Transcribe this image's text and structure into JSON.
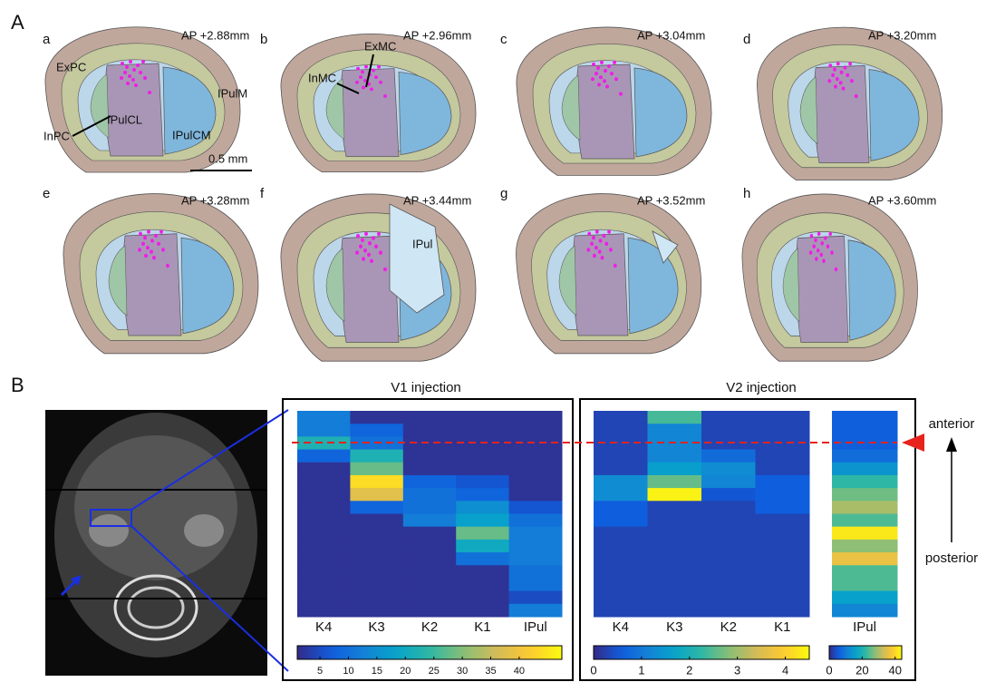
{
  "panel_a": {
    "label": "A",
    "sections": [
      {
        "letter": "a",
        "ap": "AP +2.88mm"
      },
      {
        "letter": "b",
        "ap": "AP +2.96mm"
      },
      {
        "letter": "c",
        "ap": "AP +3.04mm"
      },
      {
        "letter": "d",
        "ap": "AP +3.20mm"
      },
      {
        "letter": "e",
        "ap": "AP +3.28mm"
      },
      {
        "letter": "f",
        "ap": "AP +3.44mm"
      },
      {
        "letter": "g",
        "ap": "AP +3.52mm"
      },
      {
        "letter": "h",
        "ap": "AP +3.60mm"
      }
    ],
    "regions": [
      "ExPC",
      "InPC",
      "IPulCL",
      "IPulCM",
      "IPulM",
      "InMC",
      "ExMC",
      "IPul"
    ],
    "scale_bar": "0.5 mm"
  },
  "panel_b": {
    "label": "B",
    "anterior": "anterior",
    "posterior": "posterior"
  },
  "chart_data": [
    {
      "type": "heatmap",
      "title": "V1 injection",
      "colormap": "parula",
      "categories": [
        "K4",
        "K3",
        "K2",
        "K1",
        "IPul"
      ],
      "values": [
        [
          12,
          2,
          2,
          2,
          2
        ],
        [
          12,
          8,
          2,
          2,
          2
        ],
        [
          22,
          10,
          2,
          2,
          2
        ],
        [
          8,
          22,
          2,
          2,
          2
        ],
        [
          2,
          28,
          2,
          2,
          2
        ],
        [
          2,
          44,
          8,
          6,
          2
        ],
        [
          2,
          38,
          10,
          8,
          2
        ],
        [
          2,
          8,
          10,
          15,
          6
        ],
        [
          2,
          2,
          12,
          18,
          10
        ],
        [
          2,
          2,
          2,
          28,
          12
        ],
        [
          2,
          2,
          2,
          20,
          12
        ],
        [
          2,
          2,
          2,
          10,
          12
        ],
        [
          2,
          2,
          2,
          2,
          10
        ],
        [
          2,
          2,
          2,
          2,
          10
        ],
        [
          2,
          2,
          2,
          2,
          5
        ],
        [
          2,
          2,
          2,
          2,
          12
        ]
      ],
      "clim": [
        1,
        47.5
      ],
      "cticks": [
        5,
        10,
        15,
        20,
        25,
        30,
        35,
        40
      ]
    },
    {
      "type": "heatmap",
      "title": "V2 injection",
      "colormap": "parula",
      "categories": [
        "K4",
        "K3",
        "K2",
        "K1"
      ],
      "values": [
        [
          0.3,
          2.4,
          0.3,
          0.3
        ],
        [
          0.3,
          1.2,
          0.3,
          0.3
        ],
        [
          0.3,
          1.2,
          0.3,
          0.3
        ],
        [
          0.3,
          1.2,
          0.8,
          0.3
        ],
        [
          0.3,
          1.6,
          1.3,
          0.3
        ],
        [
          1.3,
          2.6,
          1.2,
          0.6
        ],
        [
          1.3,
          4.4,
          0.5,
          0.6
        ],
        [
          0.6,
          0.3,
          0.3,
          0.6
        ],
        [
          0.6,
          0.3,
          0.3,
          0.3
        ],
        [
          0.3,
          0.3,
          0.3,
          0.3
        ],
        [
          0.3,
          0.3,
          0.3,
          0.3
        ],
        [
          0.3,
          0.3,
          0.3,
          0.3
        ],
        [
          0.3,
          0.3,
          0.3,
          0.3
        ],
        [
          0.3,
          0.3,
          0.3,
          0.3
        ],
        [
          0.3,
          0.3,
          0.3,
          0.3
        ],
        [
          0.3,
          0.3,
          0.3,
          0.3
        ]
      ],
      "clim": [
        0,
        4.5
      ],
      "cticks": [
        0,
        1,
        2,
        3,
        4
      ]
    },
    {
      "type": "heatmap",
      "colormap": "parula",
      "categories": [
        "IPul"
      ],
      "values": [
        [
          6
        ],
        [
          6
        ],
        [
          6
        ],
        [
          8
        ],
        [
          14
        ],
        [
          22
        ],
        [
          26
        ],
        [
          30
        ],
        [
          24
        ],
        [
          42
        ],
        [
          28
        ],
        [
          36
        ],
        [
          24
        ],
        [
          24
        ],
        [
          16
        ],
        [
          12
        ]
      ],
      "clim": [
        0,
        44
      ],
      "cticks": [
        0,
        20,
        40
      ]
    }
  ]
}
